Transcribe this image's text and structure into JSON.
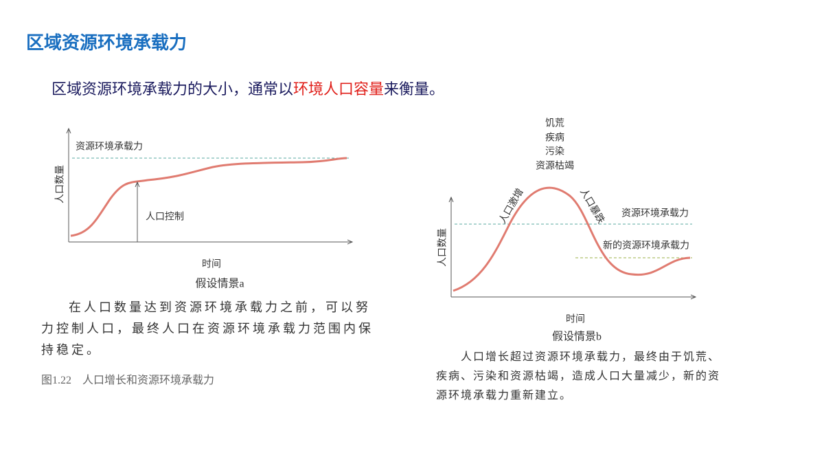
{
  "header": {
    "title": "区域资源环境承载力"
  },
  "intro": {
    "before": "区域资源环境承载力的大小，通常以",
    "highlight": "环境人口容量",
    "after": "来衡量。"
  },
  "diagram_a": {
    "capacity_label": "资源环境承载力",
    "y_label": "人口数量",
    "annotation": "人口控制",
    "x_label": "时间",
    "caption": "假设情景a",
    "description": "在人口数量达到资源环境承载力之前，可以努力控制人口，最终人口在资源环境承载力范围内保持稳定。"
  },
  "figure_caption": "图1.22　人口增长和资源环境承载力",
  "diagram_b": {
    "causes": [
      "饥荒",
      "疾病",
      "污染",
      "资源枯竭"
    ],
    "rise_label": "人口激增",
    "fall_label": "人口暴跌",
    "capacity_label": "资源环境承载力",
    "new_capacity_label": "新的资源环境承载力",
    "y_label": "人口数量",
    "x_label": "时间",
    "caption": "假设情景b",
    "description": "人口增长超过资源环境承载力，最终由于饥荒、疾病、污染和资源枯竭，造成人口大量减少，新的资源环境承载力重新建立。"
  }
}
